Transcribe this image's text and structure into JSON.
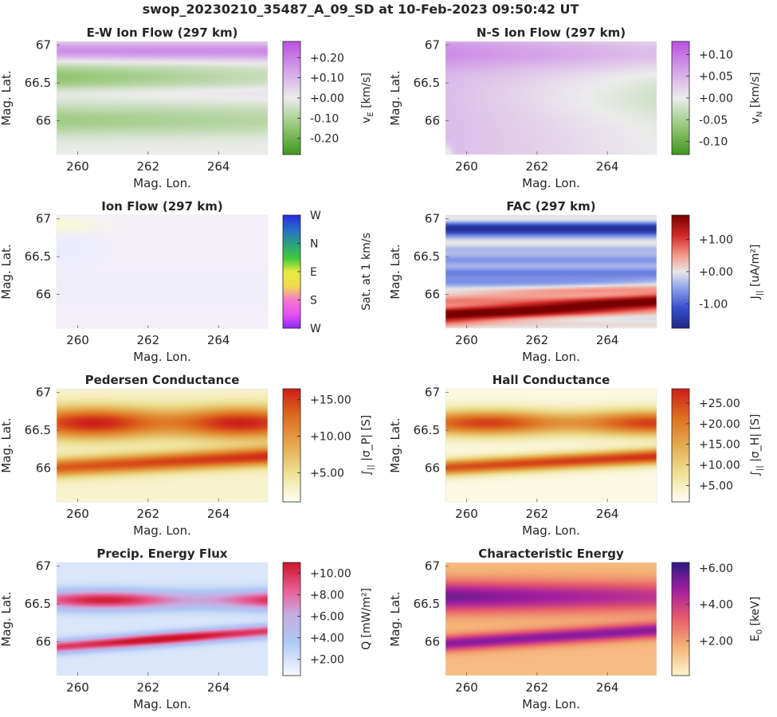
{
  "figure": {
    "title": "swop_20230210_35487_A_09_SD at 10-Feb-2023 09:50:42 UT"
  },
  "chart_data": [
    {
      "type": "heatmap",
      "title": "E-W Ion Flow (297 km)",
      "xlabel": "Mag. Lon.",
      "ylabel": "Mag. Lat.",
      "xlim": [
        259.4,
        265.4
      ],
      "ylim": [
        65.55,
        67.05
      ],
      "xticks": [
        "260",
        "262",
        "264"
      ],
      "xtick_values": [
        260,
        262,
        264
      ],
      "yticks": [
        "67",
        "66.5",
        "66"
      ],
      "ytick_values": [
        67,
        66.5,
        66
      ],
      "colorbar": {
        "label": "v_E [km/s]",
        "label_main": "v",
        "label_sub": "E",
        "label_unit": " [km/s]",
        "cmap": "green-white-purple",
        "range": [
          -0.28,
          0.28
        ],
        "ticks": [
          "+0.20",
          "+0.10",
          "+0.00",
          "-0.10",
          "-0.20"
        ],
        "tick_values": [
          0.2,
          0.1,
          0,
          -0.1,
          -0.2
        ]
      },
      "field": "ew"
    },
    {
      "type": "heatmap",
      "title": "N-S Ion Flow (297 km)",
      "xlabel": "Mag. Lon.",
      "ylabel": "Mag. Lat.",
      "xlim": [
        259.4,
        265.4
      ],
      "ylim": [
        65.55,
        67.05
      ],
      "xticks": [
        "260",
        "262",
        "264"
      ],
      "xtick_values": [
        260,
        262,
        264
      ],
      "yticks": [
        "67",
        "66.5",
        "66"
      ],
      "ytick_values": [
        67,
        66.5,
        66
      ],
      "colorbar": {
        "label": "v_N [km/s]",
        "label_main": "v",
        "label_sub": "N",
        "label_unit": " [km/s]",
        "cmap": "green-white-purple",
        "range": [
          -0.13,
          0.13
        ],
        "ticks": [
          "+0.10",
          "+0.05",
          "+0.00",
          "-0.05",
          "-0.10"
        ],
        "tick_values": [
          0.1,
          0.05,
          0,
          -0.05,
          -0.1
        ]
      },
      "field": "ns"
    },
    {
      "type": "heatmap",
      "title": "Ion Flow (297 km)",
      "xlabel": "Mag. Lon.",
      "ylabel": "Mag. Lat.",
      "xlim": [
        259.4,
        265.4
      ],
      "ylim": [
        65.55,
        67.05
      ],
      "xticks": [
        "260",
        "262",
        "264"
      ],
      "xtick_values": [
        260,
        262,
        264
      ],
      "yticks": [
        "67",
        "66.5",
        "66"
      ],
      "ytick_values": [
        67,
        66.5,
        66
      ],
      "colorbar": {
        "label": "Sat. at 1 km/s",
        "label_main": "Sat. at 1 km/s",
        "label_sub": "",
        "label_unit": "",
        "cmap": "direction-wheel",
        "range": [
          0,
          1
        ],
        "ticks": [
          "W",
          "N",
          "E",
          "S",
          "W"
        ],
        "tick_values": [
          1,
          0.75,
          0.5,
          0.25,
          0
        ]
      },
      "field": "ion"
    },
    {
      "type": "heatmap",
      "title": "FAC (297 km)",
      "xlabel": "Mag. Lon.",
      "ylabel": "Mag. Lat.",
      "xlim": [
        259.4,
        265.4
      ],
      "ylim": [
        65.55,
        67.05
      ],
      "xticks": [
        "260",
        "262",
        "264"
      ],
      "xtick_values": [
        260,
        262,
        264
      ],
      "yticks": [
        "67",
        "66.5",
        "66"
      ],
      "ytick_values": [
        67,
        66.5,
        66
      ],
      "colorbar": {
        "label": "J_|| [uA/m^2]",
        "label_main": "J",
        "label_sub": "||",
        "label_unit": " [uA/m²]",
        "cmap": "blue-white-red",
        "range": [
          -1.75,
          1.75
        ],
        "ticks": [
          "+1.00",
          "+0.00",
          "-1.00"
        ],
        "tick_values": [
          1,
          0,
          -1
        ]
      },
      "field": "fac"
    },
    {
      "type": "heatmap",
      "title": "Pedersen Conductance",
      "xlabel": "Mag. Lon.",
      "ylabel": "Mag. Lat.",
      "xlim": [
        259.4,
        265.4
      ],
      "ylim": [
        65.55,
        67.05
      ],
      "xticks": [
        "260",
        "262",
        "264"
      ],
      "xtick_values": [
        260,
        262,
        264
      ],
      "yticks": [
        "67",
        "66.5",
        "66"
      ],
      "ytick_values": [
        67,
        66.5,
        66
      ],
      "colorbar": {
        "label": "∫|| |σP| [S]",
        "label_main": "∫",
        "label_sub": "||",
        "label_unit": " |σ_P| [S]",
        "cmap": "white-yellow-red",
        "range": [
          1,
          16.5
        ],
        "ticks": [
          "+15.00",
          "+10.00",
          "+5.00"
        ],
        "tick_values": [
          15,
          10,
          5
        ]
      },
      "field": "ped"
    },
    {
      "type": "heatmap",
      "title": "Hall Conductance",
      "xlabel": "Mag. Lon.",
      "ylabel": "Mag. Lat.",
      "xlim": [
        259.4,
        265.4
      ],
      "ylim": [
        65.55,
        67.05
      ],
      "xticks": [
        "260",
        "262",
        "264"
      ],
      "xtick_values": [
        260,
        262,
        264
      ],
      "yticks": [
        "67",
        "66.5",
        "66"
      ],
      "ytick_values": [
        67,
        66.5,
        66
      ],
      "colorbar": {
        "label": "∫|| |σH| [S]",
        "label_main": "∫",
        "label_sub": "||",
        "label_unit": " |σ_H| [S]",
        "cmap": "white-yellow-red",
        "range": [
          1,
          28.5
        ],
        "ticks": [
          "+25.00",
          "+20.00",
          "+15.00",
          "+10.00",
          "+5.00"
        ],
        "tick_values": [
          25,
          20,
          15,
          10,
          5
        ]
      },
      "field": "hall"
    },
    {
      "type": "heatmap",
      "title": "Precip. Energy Flux",
      "xlabel": "Mag. Lon.",
      "ylabel": "Mag. Lat.",
      "xlim": [
        259.4,
        265.4
      ],
      "ylim": [
        65.55,
        67.05
      ],
      "xticks": [
        "260",
        "262",
        "264"
      ],
      "xtick_values": [
        260,
        262,
        264
      ],
      "yticks": [
        "67",
        "66.5",
        "66"
      ],
      "ytick_values": [
        67,
        66.5,
        66
      ],
      "colorbar": {
        "label": "Q [mW/m^2]",
        "label_main": "Q",
        "label_sub": "",
        "label_unit": " [mW/m²]",
        "cmap": "white-blue-red",
        "range": [
          0.5,
          11
        ],
        "ticks": [
          "+10.00",
          "+8.00",
          "+6.00",
          "+4.00",
          "+2.00"
        ],
        "tick_values": [
          10,
          8,
          6,
          4,
          2
        ]
      },
      "field": "flux"
    },
    {
      "type": "heatmap",
      "title": "Characteristic Energy",
      "xlabel": "Mag. Lon.",
      "ylabel": "Mag. Lat.",
      "xlim": [
        259.4,
        265.4
      ],
      "ylim": [
        65.55,
        67.05
      ],
      "xticks": [
        "260",
        "262",
        "264"
      ],
      "xtick_values": [
        260,
        262,
        264
      ],
      "yticks": [
        "67",
        "66.5",
        "66"
      ],
      "ytick_values": [
        67,
        66.5,
        66
      ],
      "colorbar": {
        "label": "E_0 [keV]",
        "label_main": "E",
        "label_sub": "0",
        "label_unit": " [keV]",
        "cmap": "white-orange-purple",
        "range": [
          0.1,
          6.3
        ],
        "ticks": [
          "+6.00",
          "+4.00",
          "+2.00"
        ],
        "tick_values": [
          6,
          4,
          2
        ]
      },
      "field": "energy"
    }
  ]
}
